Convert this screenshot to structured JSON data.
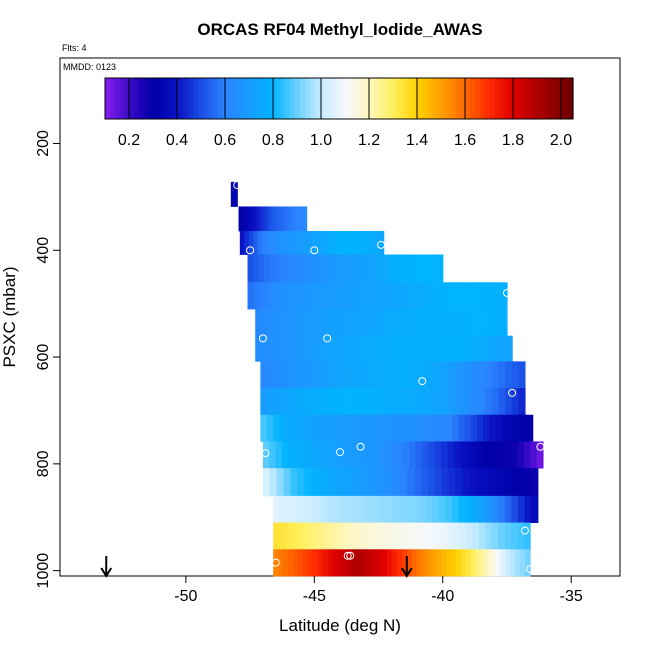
{
  "chart_data": {
    "type": "heatmap",
    "title": "ORCAS RF04 Methyl_Iodide_AWAS",
    "flights_note": "Flts: 4",
    "date_note": "MMDD: 0123",
    "xlabel": "Latitude (deg N)",
    "ylabel": "PSXC (mbar)",
    "xlim": [
      -54.9,
      -33.1
    ],
    "ylim": [
      1010,
      40
    ],
    "y_inverted": true,
    "x_ticks": [
      -50,
      -45,
      -40,
      -35
    ],
    "x_tick_labels": [
      "-50",
      "-45",
      "-40",
      "-35"
    ],
    "y_ticks": [
      200,
      400,
      600,
      800,
      1000
    ],
    "y_tick_labels": [
      "200",
      "400",
      "600",
      "800",
      "1000"
    ],
    "colorbar": {
      "min": 0.1,
      "max": 2.05,
      "ticks": [
        0.2,
        0.4,
        0.6,
        0.8,
        1.0,
        1.2,
        1.4,
        1.6,
        1.8,
        2.0
      ],
      "tick_labels": [
        "0.2",
        "0.4",
        "0.6",
        "0.8",
        "1.0",
        "1.2",
        "1.4",
        "1.6",
        "1.8",
        "2.0"
      ],
      "stops": [
        {
          "v": 0.1,
          "c": "#8a1ef0"
        },
        {
          "v": 0.2,
          "c": "#3b0ac8"
        },
        {
          "v": 0.3,
          "c": "#0000a8"
        },
        {
          "v": 0.4,
          "c": "#0a12c4"
        },
        {
          "v": 0.5,
          "c": "#1a4ee6"
        },
        {
          "v": 0.6,
          "c": "#2a84ff"
        },
        {
          "v": 0.7,
          "c": "#189cff"
        },
        {
          "v": 0.8,
          "c": "#00b4ff"
        },
        {
          "v": 0.9,
          "c": "#6ad0ff"
        },
        {
          "v": 1.0,
          "c": "#c8ecff"
        },
        {
          "v": 1.1,
          "c": "#f4f8ff"
        },
        {
          "v": 1.2,
          "c": "#fff6c0"
        },
        {
          "v": 1.3,
          "c": "#fff060"
        },
        {
          "v": 1.4,
          "c": "#ffd000"
        },
        {
          "v": 1.5,
          "c": "#ffa000"
        },
        {
          "v": 1.6,
          "c": "#ff6a00"
        },
        {
          "v": 1.7,
          "c": "#ff2a00"
        },
        {
          "v": 1.8,
          "c": "#e00000"
        },
        {
          "v": 1.9,
          "c": "#b00000"
        },
        {
          "v": 2.05,
          "c": "#6a0000"
        }
      ]
    },
    "bands": [
      {
        "p_top": 272,
        "p_bot": 318,
        "lat_start": -48.25,
        "lat_end": -48.0,
        "vals": [
          0.32
        ]
      },
      {
        "p_top": 318,
        "p_bot": 364,
        "lat_start": -47.95,
        "lat_end": -45.3,
        "vals": [
          0.28,
          0.4,
          0.52,
          0.58,
          0.62
        ]
      },
      {
        "p_top": 364,
        "p_bot": 408,
        "lat_start": -47.9,
        "lat_end": -42.3,
        "vals": [
          0.38,
          0.58,
          0.66,
          0.7,
          0.74,
          0.8,
          0.78,
          0.74
        ]
      },
      {
        "p_top": 408,
        "p_bot": 460,
        "lat_start": -47.6,
        "lat_end": -40.0,
        "vals": [
          0.5,
          0.58,
          0.62,
          0.66,
          0.7,
          0.72,
          0.78,
          0.8,
          0.8
        ]
      },
      {
        "p_top": 460,
        "p_bot": 510,
        "lat_start": -47.6,
        "lat_end": -37.5,
        "vals": [
          0.56,
          0.64,
          0.68,
          0.7,
          0.72,
          0.74,
          0.76,
          0.8,
          0.8,
          0.78
        ]
      },
      {
        "p_top": 510,
        "p_bot": 560,
        "lat_start": -47.3,
        "lat_end": -37.5,
        "vals": [
          0.62,
          0.66,
          0.7,
          0.72,
          0.74,
          0.76,
          0.78,
          0.78,
          0.8,
          0.78
        ]
      },
      {
        "p_top": 560,
        "p_bot": 608,
        "lat_start": -47.3,
        "lat_end": -37.3,
        "vals": [
          0.64,
          0.66,
          0.7,
          0.74,
          0.76,
          0.78,
          0.78,
          0.8,
          0.76,
          0.72
        ]
      },
      {
        "p_top": 608,
        "p_bot": 658,
        "lat_start": -47.1,
        "lat_end": -36.8,
        "vals": [
          0.62,
          0.66,
          0.7,
          0.74,
          0.76,
          0.78,
          0.74,
          0.66,
          0.58,
          0.5
        ]
      },
      {
        "p_top": 658,
        "p_bot": 708,
        "lat_start": -47.1,
        "lat_end": -36.8,
        "vals": [
          0.7,
          0.74,
          0.78,
          0.8,
          0.78,
          0.76,
          0.74,
          0.66,
          0.56,
          0.42
        ]
      },
      {
        "p_top": 708,
        "p_bot": 758,
        "lat_start": -47.1,
        "lat_end": -36.5,
        "vals": [
          0.88,
          0.76,
          0.72,
          0.7,
          0.68,
          0.66,
          0.64,
          0.6,
          0.46,
          0.34,
          0.3
        ]
      },
      {
        "p_top": 758,
        "p_bot": 808,
        "lat_start": -47.0,
        "lat_end": -36.1,
        "vals": [
          0.9,
          0.78,
          0.74,
          0.7,
          0.68,
          0.6,
          0.5,
          0.4,
          0.3,
          0.28,
          0.12
        ]
      },
      {
        "p_top": 808,
        "p_bot": 860,
        "lat_start": -47.0,
        "lat_end": -36.3,
        "vals": [
          1.05,
          0.85,
          0.76,
          0.72,
          0.66,
          0.56,
          0.46,
          0.38,
          0.32,
          0.28
        ]
      },
      {
        "p_top": 860,
        "p_bot": 910,
        "lat_start": -46.6,
        "lat_end": -36.3,
        "vals": [
          1.06,
          1.02,
          0.98,
          0.96,
          0.94,
          0.92,
          0.86,
          0.74,
          0.54,
          0.34
        ]
      },
      {
        "p_top": 910,
        "p_bot": 960,
        "lat_start": -46.6,
        "lat_end": -36.6,
        "vals": [
          1.35,
          1.3,
          1.24,
          1.18,
          1.14,
          1.12,
          1.08,
          1.0,
          0.9,
          0.84
        ]
      },
      {
        "p_top": 960,
        "p_bot": 1010,
        "lat_start": -46.6,
        "lat_end": -36.6,
        "vals": [
          1.55,
          1.62,
          1.7,
          1.82,
          1.9,
          1.82,
          1.68,
          1.55,
          1.45,
          1.35,
          1.2,
          1.0,
          0.9
        ]
      }
    ],
    "samples": [
      {
        "lat": -48.0,
        "p": 278
      },
      {
        "lat": -47.5,
        "p": 400
      },
      {
        "lat": -45.0,
        "p": 400
      },
      {
        "lat": -42.4,
        "p": 390
      },
      {
        "lat": -37.5,
        "p": 480
      },
      {
        "lat": -47.0,
        "p": 565
      },
      {
        "lat": -44.5,
        "p": 565
      },
      {
        "lat": -40.8,
        "p": 645
      },
      {
        "lat": -37.3,
        "p": 667
      },
      {
        "lat": -46.9,
        "p": 780
      },
      {
        "lat": -44.0,
        "p": 778
      },
      {
        "lat": -43.2,
        "p": 768
      },
      {
        "lat": -36.2,
        "p": 768
      },
      {
        "lat": -36.8,
        "p": 925
      },
      {
        "lat": -43.7,
        "p": 972
      },
      {
        "lat": -43.6,
        "p": 972
      },
      {
        "lat": -46.5,
        "p": 985
      },
      {
        "lat": -36.6,
        "p": 997
      }
    ],
    "arrows": [
      {
        "lat": -53.1
      },
      {
        "lat": -41.4
      }
    ]
  }
}
